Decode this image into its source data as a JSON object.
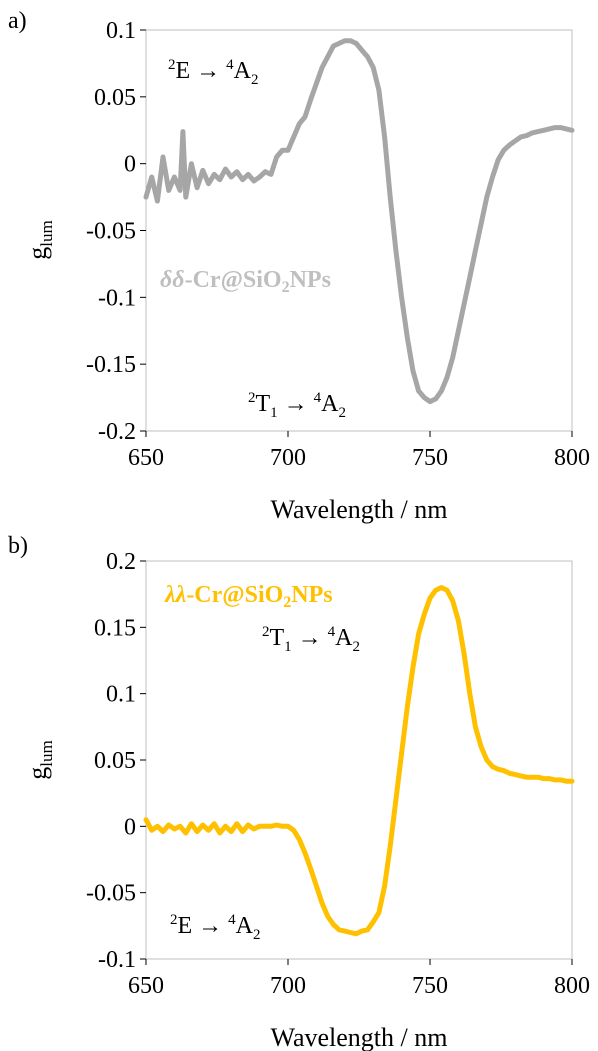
{
  "chart_data": [
    {
      "type": "line",
      "panel_label": "a)",
      "series": [
        {
          "name": "δδ-Cr@SiO2NPs",
          "label_prefix": "δδ",
          "label_main": "-Cr@SiO",
          "label_sub": "2",
          "label_tail": "NPs",
          "color": "#a6a6a6",
          "x": [
            650,
            652,
            654,
            656,
            658,
            660,
            662,
            663,
            664,
            666,
            668,
            670,
            672,
            674,
            676,
            678,
            680,
            682,
            684,
            686,
            688,
            690,
            692,
            694,
            696,
            698,
            700,
            702,
            704,
            706,
            708,
            710,
            712,
            714,
            716,
            718,
            720,
            722,
            724,
            726,
            728,
            730,
            732,
            734,
            736,
            738,
            740,
            742,
            744,
            746,
            748,
            750,
            752,
            754,
            756,
            758,
            760,
            762,
            764,
            766,
            768,
            770,
            772,
            774,
            776,
            778,
            780,
            782,
            784,
            786,
            788,
            790,
            792,
            794,
            796,
            798,
            800
          ],
          "y": [
            -0.025,
            -0.01,
            -0.028,
            0.005,
            -0.02,
            -0.01,
            -0.02,
            0.024,
            -0.025,
            0.0,
            -0.018,
            -0.005,
            -0.015,
            -0.008,
            -0.012,
            -0.004,
            -0.01,
            -0.006,
            -0.012,
            -0.008,
            -0.013,
            -0.01,
            -0.006,
            -0.008,
            0.005,
            0.01,
            0.01,
            0.02,
            0.03,
            0.035,
            0.048,
            0.06,
            0.072,
            0.08,
            0.088,
            0.09,
            0.092,
            0.092,
            0.09,
            0.085,
            0.08,
            0.072,
            0.055,
            0.02,
            -0.025,
            -0.065,
            -0.1,
            -0.13,
            -0.155,
            -0.17,
            -0.175,
            -0.178,
            -0.176,
            -0.17,
            -0.16,
            -0.145,
            -0.125,
            -0.105,
            -0.085,
            -0.065,
            -0.045,
            -0.025,
            -0.01,
            0.003,
            0.01,
            0.014,
            0.017,
            0.02,
            0.021,
            0.023,
            0.024,
            0.025,
            0.026,
            0.027,
            0.027,
            0.026,
            0.025
          ]
        }
      ],
      "xlabel": "Wavelength / nm",
      "ylabel": "glum",
      "ylabel_main": "g",
      "ylabel_sub": "lum",
      "xlim": [
        650,
        800
      ],
      "ylim": [
        -0.2,
        0.1
      ],
      "xticks": [
        650,
        700,
        750,
        800
      ],
      "xtick_labels": [
        "650",
        "700",
        "750",
        "800"
      ],
      "yticks": [
        0.1,
        0.05,
        0,
        -0.05,
        -0.1,
        -0.15,
        -0.2
      ],
      "ytick_labels": [
        "0.1",
        "0.05",
        "0",
        "-0.05",
        "-0.1",
        "-0.15",
        "-0.2"
      ],
      "grid": false,
      "annotations": [
        {
          "text": "2E → 4A2",
          "sup1": "2",
          "main1": "E → ",
          "sup2": "4",
          "main2": "A",
          "sub2": "2",
          "position": "upper-left"
        },
        {
          "text": "2T1 → 4A2",
          "sup1": "2",
          "main1": "T",
          "sub1": "1",
          "main1b": " → ",
          "sup2": "4",
          "main2": "A",
          "sub2": "2",
          "position": "bottom-center"
        }
      ]
    },
    {
      "type": "line",
      "panel_label": "b)",
      "series": [
        {
          "name": "λλ-Cr@SiO2NPs",
          "label_prefix": "λλ",
          "label_main": "-Cr@SiO",
          "label_sub": "2",
          "label_tail": "NPs",
          "color": "#ffc000",
          "x": [
            650,
            652,
            654,
            656,
            658,
            660,
            662,
            664,
            666,
            668,
            670,
            672,
            674,
            676,
            678,
            680,
            682,
            684,
            686,
            688,
            690,
            692,
            694,
            696,
            698,
            700,
            702,
            704,
            706,
            708,
            710,
            712,
            714,
            716,
            718,
            720,
            722,
            724,
            726,
            728,
            730,
            732,
            734,
            736,
            738,
            740,
            742,
            744,
            746,
            748,
            750,
            752,
            754,
            756,
            758,
            760,
            762,
            764,
            766,
            768,
            770,
            772,
            774,
            776,
            778,
            780,
            782,
            784,
            786,
            788,
            790,
            792,
            794,
            796,
            798,
            800
          ],
          "y": [
            0.005,
            -0.003,
            0.0,
            -0.004,
            0.001,
            -0.002,
            0.0,
            -0.005,
            0.002,
            -0.004,
            0.001,
            -0.003,
            0.002,
            -0.005,
            0.0,
            -0.004,
            0.002,
            -0.004,
            0.001,
            -0.002,
            0.0,
            0.0,
            0.0,
            0.001,
            0.0,
            0.0,
            -0.003,
            -0.01,
            -0.02,
            -0.032,
            -0.045,
            -0.058,
            -0.068,
            -0.074,
            -0.078,
            -0.079,
            -0.08,
            -0.081,
            -0.079,
            -0.078,
            -0.072,
            -0.065,
            -0.045,
            -0.015,
            0.02,
            0.055,
            0.09,
            0.12,
            0.145,
            0.16,
            0.172,
            0.178,
            0.18,
            0.178,
            0.17,
            0.155,
            0.13,
            0.1,
            0.075,
            0.06,
            0.05,
            0.045,
            0.043,
            0.042,
            0.04,
            0.039,
            0.038,
            0.037,
            0.037,
            0.037,
            0.036,
            0.036,
            0.035,
            0.035,
            0.034,
            0.034
          ]
        }
      ],
      "xlabel": "Wavelength / nm",
      "ylabel": "glum",
      "ylabel_main": "g",
      "ylabel_sub": "lum",
      "xlim": [
        650,
        800
      ],
      "ylim": [
        -0.1,
        0.2
      ],
      "xticks": [
        650,
        700,
        750,
        800
      ],
      "xtick_labels": [
        "650",
        "700",
        "750",
        "800"
      ],
      "yticks": [
        0.2,
        0.15,
        0.1,
        0.05,
        0,
        -0.05,
        -0.1
      ],
      "ytick_labels": [
        "0.2",
        "0.15",
        "0.1",
        "0.05",
        "0",
        "-0.05",
        "-0.1"
      ],
      "grid": false,
      "annotations": [
        {
          "text": "2T1 → 4A2",
          "sup1": "2",
          "main1": "T",
          "sub1": "1",
          "main1b": " → ",
          "sup2": "4",
          "main2": "A",
          "sub2": "2",
          "position": "upper-center"
        },
        {
          "text": "2E → 4A2",
          "sup1": "2",
          "main1": "E → ",
          "sup2": "4",
          "main2": "A",
          "sub2": "2",
          "position": "lower-left"
        }
      ]
    }
  ]
}
